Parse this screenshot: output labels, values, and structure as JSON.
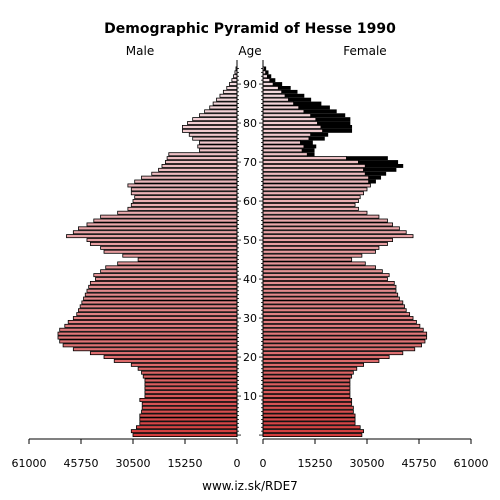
{
  "chart_data": {
    "type": "bar",
    "orientation": "horizontal-mirrored",
    "title": "Demographic Pyramid of Hesse 1990",
    "left_label": "Male",
    "center_label": "Age",
    "right_label": "Female",
    "footer": "www.iz.sk/RDE7",
    "xlim": [
      0,
      61000
    ],
    "x_ticks": [
      "61000",
      "45750",
      "30500",
      "15250",
      "0"
    ],
    "x_ticks_right": [
      "0",
      "15250",
      "30500",
      "45750",
      "61000"
    ],
    "x_tick_values": [
      61000,
      45750,
      30500,
      15250,
      0
    ],
    "age_ticks": [
      10,
      20,
      30,
      40,
      50,
      60,
      70,
      80,
      90
    ],
    "ages": [
      0,
      1,
      2,
      3,
      4,
      5,
      6,
      7,
      8,
      9,
      10,
      11,
      12,
      13,
      14,
      15,
      16,
      17,
      18,
      19,
      20,
      21,
      22,
      23,
      24,
      25,
      26,
      27,
      28,
      29,
      30,
      31,
      32,
      33,
      34,
      35,
      36,
      37,
      38,
      39,
      40,
      41,
      42,
      43,
      44,
      45,
      46,
      47,
      48,
      49,
      50,
      51,
      52,
      53,
      54,
      55,
      56,
      57,
      58,
      59,
      60,
      61,
      62,
      63,
      64,
      65,
      66,
      67,
      68,
      69,
      70,
      71,
      72,
      73,
      74,
      75,
      76,
      77,
      78,
      79,
      80,
      81,
      82,
      83,
      84,
      85,
      86,
      87,
      88,
      89,
      90,
      91,
      92,
      93,
      94
    ],
    "male": [
      30500,
      31000,
      29500,
      28500,
      28500,
      28500,
      28000,
      27800,
      27800,
      28500,
      27000,
      27000,
      27000,
      27000,
      27000,
      27500,
      28000,
      29000,
      31000,
      36000,
      39000,
      43000,
      48000,
      51000,
      52000,
      52500,
      52500,
      52000,
      50500,
      49500,
      48000,
      47000,
      46500,
      46000,
      45500,
      45000,
      44500,
      44000,
      43500,
      43000,
      41500,
      42000,
      40000,
      38500,
      35000,
      29000,
      33500,
      39000,
      40000,
      43000,
      44000,
      50000,
      48000,
      46500,
      44000,
      42000,
      40000,
      35000,
      32000,
      31000,
      30500,
      30000,
      31000,
      31000,
      32000,
      30000,
      28000,
      25000,
      23000,
      22000,
      21000,
      20500,
      20000,
      11000,
      11500,
      11000,
      13000,
      14000,
      16000,
      16000,
      14500,
      13000,
      11000,
      9500,
      8000,
      7000,
      6000,
      5000,
      4000,
      3000,
      2200,
      1500,
      1000,
      600,
      300
    ],
    "female": [
      29000,
      29500,
      28500,
      27000,
      27000,
      27000,
      26500,
      26500,
      26000,
      26000,
      25500,
      25500,
      25500,
      25500,
      25500,
      26000,
      26500,
      27500,
      29500,
      34000,
      37000,
      41000,
      44500,
      46500,
      47500,
      48000,
      48000,
      47000,
      46000,
      45000,
      44000,
      43000,
      42000,
      41500,
      41000,
      40000,
      39500,
      39000,
      39000,
      38500,
      36500,
      37000,
      35000,
      33000,
      30000,
      26000,
      29000,
      33000,
      34000,
      36500,
      38000,
      44000,
      42000,
      40000,
      38000,
      36500,
      34000,
      30500,
      28000,
      27000,
      28000,
      28500,
      29500,
      30500,
      31500,
      31000,
      31000,
      30000,
      29500,
      30000,
      28000,
      24500,
      13000,
      11500,
      12000,
      11000,
      13500,
      14000,
      17500,
      17000,
      16000,
      15500,
      14000,
      12000,
      10500,
      9000,
      7500,
      6500,
      5500,
      4500,
      3000,
      2000,
      1300,
      800,
      400
    ],
    "female_excess": [
      0,
      0,
      0,
      0,
      0,
      0,
      0,
      0,
      0,
      0,
      0,
      0,
      0,
      0,
      0,
      0,
      0,
      0,
      0,
      0,
      0,
      0,
      0,
      0,
      0,
      0,
      0,
      0,
      0,
      0,
      0,
      0,
      0,
      0,
      0,
      0,
      0,
      0,
      0,
      0,
      0,
      0,
      0,
      0,
      0,
      0,
      0,
      0,
      0,
      0,
      0,
      0,
      0,
      0,
      0,
      0,
      0,
      0,
      0,
      0,
      0,
      0,
      0,
      0,
      0,
      2000,
      3500,
      6000,
      9500,
      11000,
      11500,
      12000,
      2000,
      3500,
      3500,
      3500,
      4500,
      5000,
      8500,
      9000,
      9500,
      10000,
      10000,
      9500,
      9000,
      8000,
      6500,
      5500,
      4500,
      3500,
      2500,
      1500,
      1000,
      700,
      400
    ]
  },
  "colors": {
    "bar_young": "#d23c3c",
    "bar_old": "#f5e1e6",
    "excess": "#000000"
  }
}
